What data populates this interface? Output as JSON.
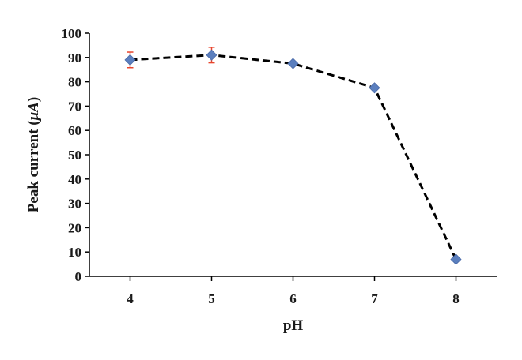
{
  "chart_data": {
    "type": "line",
    "title": "",
    "xlabel": "pH",
    "ylabel_prefix": "Peak current (",
    "ylabel_unit": "μA",
    "ylabel_suffix": ")",
    "x": [
      4,
      5,
      6,
      7,
      8
    ],
    "xlim": [
      3.5,
      8.5
    ],
    "x_ticks": [
      4,
      5,
      6,
      7,
      8
    ],
    "ylim": [
      0,
      100
    ],
    "y_ticks": [
      0,
      10,
      20,
      30,
      40,
      50,
      60,
      70,
      80,
      90,
      100
    ],
    "grid": false,
    "series": [
      {
        "values": [
          89,
          91,
          87.5,
          77.5,
          7
        ],
        "error": [
          3.2,
          3.2,
          0,
          0,
          0
        ],
        "line_style": "dashed",
        "line_color": "#000000",
        "marker": "diamond",
        "marker_color": "#5b7fbe",
        "error_bar_color": "#e8452c"
      }
    ]
  }
}
